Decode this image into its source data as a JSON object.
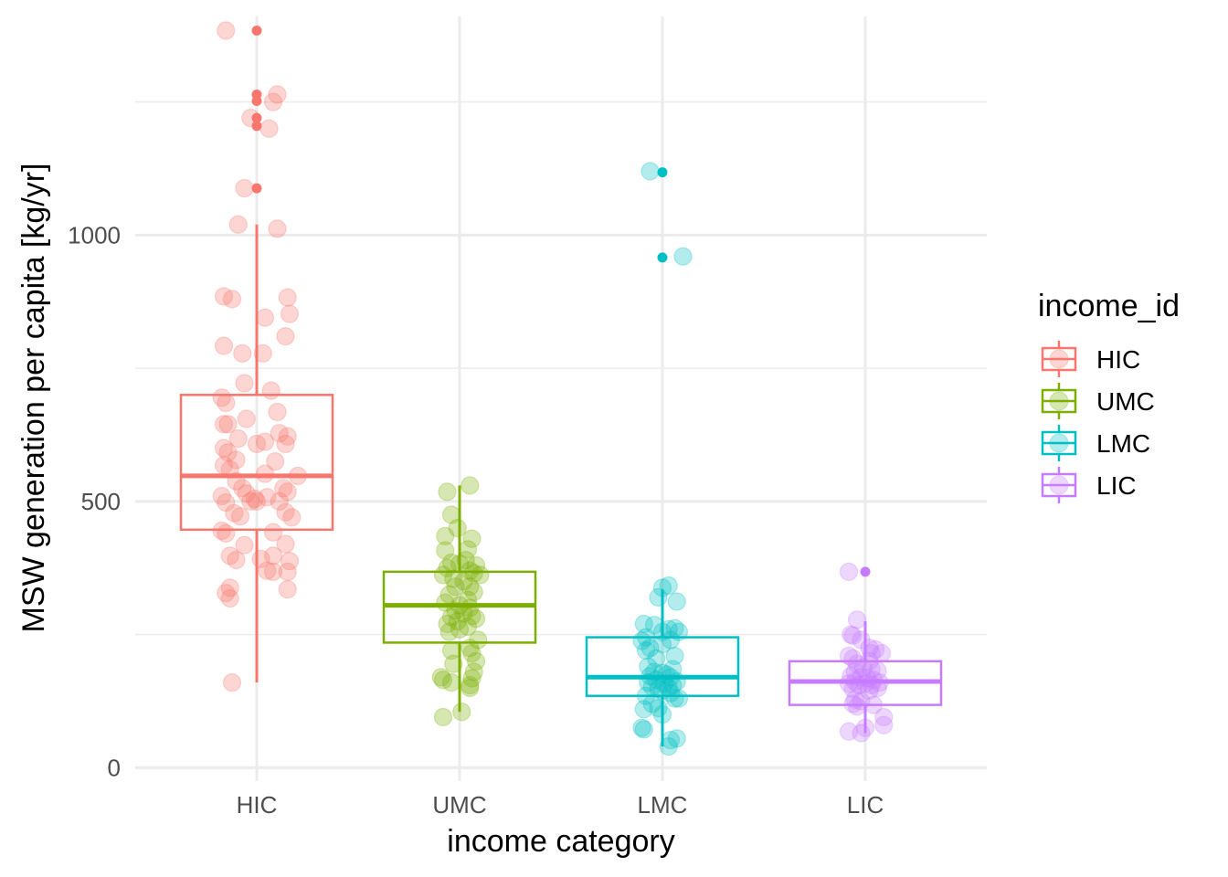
{
  "chart_data": {
    "type": "box",
    "xlabel": "income category",
    "ylabel": "MSW generation per capita [kg/yr]",
    "categories": [
      "HIC",
      "UMC",
      "LMC",
      "LIC"
    ],
    "ylim": [
      -25,
      1390
    ],
    "y_ticks": [
      0,
      500,
      1000
    ],
    "y_minor_ticks": [
      250,
      750,
      1250
    ],
    "grid": true,
    "legend": {
      "title": "income_id",
      "placement": "right",
      "entries": [
        "HIC",
        "UMC",
        "LMC",
        "LIC"
      ]
    },
    "colors": {
      "HIC": "#F8766D",
      "UMC": "#7CAE00",
      "LMC": "#00BFC4",
      "LIC": "#C77CFF"
    },
    "series": [
      {
        "name": "HIC",
        "box": {
          "whisker_low": 160,
          "q1": 447,
          "median": 548,
          "q3": 700,
          "whisker_high": 1020
        },
        "outliers": [
          1384,
          1264,
          1252,
          1220,
          1205,
          1088
        ],
        "points": [
          [
            -0.15,
            1384
          ],
          [
            0.1,
            1264
          ],
          [
            0.08,
            1250
          ],
          [
            -0.03,
            1220
          ],
          [
            0.06,
            1200
          ],
          [
            -0.06,
            1088
          ],
          [
            -0.09,
            1020
          ],
          [
            0.1,
            1012
          ],
          [
            -0.16,
            885
          ],
          [
            -0.12,
            880
          ],
          [
            0.15,
            883
          ],
          [
            0.04,
            845
          ],
          [
            0.16,
            852
          ],
          [
            0.14,
            810
          ],
          [
            -0.16,
            792
          ],
          [
            -0.07,
            778
          ],
          [
            0.03,
            778
          ],
          [
            -0.06,
            722
          ],
          [
            0.07,
            708
          ],
          [
            -0.17,
            695
          ],
          [
            -0.15,
            685
          ],
          [
            0.1,
            668
          ],
          [
            -0.05,
            655
          ],
          [
            -0.16,
            645
          ],
          [
            -0.14,
            645
          ],
          [
            0.11,
            628
          ],
          [
            0.15,
            622
          ],
          [
            -0.09,
            618
          ],
          [
            0.0,
            608
          ],
          [
            0.04,
            612
          ],
          [
            0.14,
            608
          ],
          [
            -0.16,
            600
          ],
          [
            -0.14,
            592
          ],
          [
            -0.1,
            578
          ],
          [
            0.09,
            575
          ],
          [
            -0.16,
            568
          ],
          [
            -0.13,
            560
          ],
          [
            0.04,
            552
          ],
          [
            0.2,
            548
          ],
          [
            -0.1,
            538
          ],
          [
            -0.07,
            525
          ],
          [
            0.13,
            525
          ],
          [
            0.15,
            518
          ],
          [
            -0.05,
            515
          ],
          [
            0.05,
            508
          ],
          [
            -0.01,
            505
          ],
          [
            -0.17,
            510
          ],
          [
            0.0,
            500
          ],
          [
            -0.03,
            500
          ],
          [
            0.11,
            500
          ],
          [
            -0.15,
            498
          ],
          [
            0.14,
            480
          ],
          [
            -0.11,
            478
          ],
          [
            -0.08,
            472
          ],
          [
            0.17,
            470
          ],
          [
            -0.17,
            445
          ],
          [
            -0.15,
            440
          ],
          [
            0.08,
            442
          ],
          [
            -0.06,
            418
          ],
          [
            0.14,
            420
          ],
          [
            -0.13,
            398
          ],
          [
            0.08,
            398
          ],
          [
            -0.1,
            390
          ],
          [
            0.02,
            392
          ],
          [
            0.16,
            388
          ],
          [
            0.05,
            370
          ],
          [
            0.08,
            368
          ],
          [
            0.15,
            368
          ],
          [
            -0.13,
            338
          ],
          [
            0.15,
            335
          ],
          [
            -0.15,
            328
          ],
          [
            -0.13,
            318
          ],
          [
            -0.12,
            160
          ]
        ]
      },
      {
        "name": "UMC",
        "box": {
          "whisker_low": 105,
          "q1": 235,
          "median": 305,
          "q3": 368,
          "whisker_high": 530
        },
        "outliers": [],
        "points": [
          [
            0.05,
            530
          ],
          [
            -0.06,
            518
          ],
          [
            -0.04,
            475
          ],
          [
            -0.01,
            450
          ],
          [
            -0.07,
            435
          ],
          [
            0.06,
            430
          ],
          [
            0.04,
            410
          ],
          [
            -0.07,
            408
          ],
          [
            0.03,
            390
          ],
          [
            -0.04,
            385
          ],
          [
            0.0,
            383
          ],
          [
            0.08,
            380
          ],
          [
            -0.06,
            375
          ],
          [
            0.05,
            370
          ],
          [
            0.07,
            365
          ],
          [
            -0.08,
            362
          ],
          [
            0.1,
            362
          ],
          [
            -0.03,
            355
          ],
          [
            0.02,
            350
          ],
          [
            -0.02,
            340
          ],
          [
            0.05,
            340
          ],
          [
            0.07,
            330
          ],
          [
            -0.05,
            325
          ],
          [
            0.04,
            315
          ],
          [
            -0.07,
            310
          ],
          [
            0.0,
            305
          ],
          [
            0.05,
            300
          ],
          [
            -0.02,
            295
          ],
          [
            0.02,
            290
          ],
          [
            0.06,
            285
          ],
          [
            -0.04,
            283
          ],
          [
            0.08,
            280
          ],
          [
            -0.01,
            275
          ],
          [
            -0.06,
            270
          ],
          [
            0.04,
            265
          ],
          [
            0.0,
            260
          ],
          [
            -0.05,
            255
          ],
          [
            0.09,
            240
          ],
          [
            0.05,
            225
          ],
          [
            -0.04,
            220
          ],
          [
            0.06,
            215
          ],
          [
            0.08,
            200
          ],
          [
            -0.03,
            195
          ],
          [
            0.07,
            180
          ],
          [
            -0.09,
            170
          ],
          [
            0.06,
            168
          ],
          [
            -0.08,
            165
          ],
          [
            -0.04,
            160
          ],
          [
            0.05,
            155
          ],
          [
            0.05,
            150
          ],
          [
            -0.08,
            95
          ],
          [
            0.01,
            105
          ]
        ]
      },
      {
        "name": "LMC",
        "box": {
          "whisker_low": 40,
          "q1": 135,
          "median": 170,
          "q3": 245,
          "whisker_high": 335
        },
        "outliers": [
          1118,
          958
        ],
        "points": [
          [
            -0.06,
            1120
          ],
          [
            0.1,
            960
          ],
          [
            0.03,
            342
          ],
          [
            0.0,
            338
          ],
          [
            -0.02,
            320
          ],
          [
            0.07,
            312
          ],
          [
            -0.09,
            270
          ],
          [
            -0.04,
            268
          ],
          [
            0.06,
            262
          ],
          [
            0.03,
            260
          ],
          [
            0.0,
            255
          ],
          [
            0.08,
            255
          ],
          [
            -0.08,
            245
          ],
          [
            0.04,
            240
          ],
          [
            -0.1,
            238
          ],
          [
            0.0,
            232
          ],
          [
            -0.06,
            225
          ],
          [
            -0.08,
            220
          ],
          [
            0.06,
            210
          ],
          [
            -0.03,
            205
          ],
          [
            -0.07,
            190
          ],
          [
            0.05,
            185
          ],
          [
            -0.04,
            180
          ],
          [
            0.0,
            178
          ],
          [
            0.02,
            175
          ],
          [
            -0.06,
            172
          ],
          [
            0.04,
            170
          ],
          [
            -0.03,
            165
          ],
          [
            0.07,
            162
          ],
          [
            -0.07,
            160
          ],
          [
            0.01,
            158
          ],
          [
            0.05,
            155
          ],
          [
            -0.05,
            152
          ],
          [
            0.03,
            150
          ],
          [
            -0.02,
            148
          ],
          [
            0.0,
            145
          ],
          [
            0.04,
            140
          ],
          [
            -0.08,
            135
          ],
          [
            0.06,
            130
          ],
          [
            0.08,
            130
          ],
          [
            -0.05,
            120
          ],
          [
            -0.02,
            112
          ],
          [
            -0.09,
            110
          ],
          [
            0.0,
            100
          ],
          [
            -0.1,
            75
          ],
          [
            -0.09,
            72
          ],
          [
            0.07,
            55
          ],
          [
            0.04,
            52
          ],
          [
            0.03,
            40
          ]
        ]
      },
      {
        "name": "LIC",
        "box": {
          "whisker_low": 65,
          "q1": 118,
          "median": 162,
          "q3": 200,
          "whisker_high": 275
        },
        "outliers": [
          368
        ],
        "points": [
          [
            -0.08,
            368
          ],
          [
            -0.04,
            278
          ],
          [
            -0.07,
            250
          ],
          [
            -0.06,
            248
          ],
          [
            -0.02,
            240
          ],
          [
            0.02,
            225
          ],
          [
            0.05,
            222
          ],
          [
            0.08,
            215
          ],
          [
            0.03,
            215
          ],
          [
            -0.08,
            210
          ],
          [
            -0.06,
            205
          ],
          [
            0.02,
            200
          ],
          [
            -0.04,
            195
          ],
          [
            -0.01,
            188
          ],
          [
            0.03,
            185
          ],
          [
            0.06,
            182
          ],
          [
            -0.05,
            180
          ],
          [
            -0.07,
            172
          ],
          [
            -0.02,
            170
          ],
          [
            0.01,
            168
          ],
          [
            0.04,
            165
          ],
          [
            -0.05,
            162
          ],
          [
            0.07,
            160
          ],
          [
            0.0,
            158
          ],
          [
            -0.08,
            158
          ],
          [
            0.03,
            155
          ],
          [
            -0.03,
            155
          ],
          [
            0.06,
            150
          ],
          [
            -0.06,
            148
          ],
          [
            0.02,
            145
          ],
          [
            -0.05,
            128
          ],
          [
            -0.02,
            125
          ],
          [
            -0.06,
            120
          ],
          [
            0.04,
            118
          ],
          [
            -0.04,
            115
          ],
          [
            0.09,
            95
          ],
          [
            0.09,
            80
          ],
          [
            0.0,
            75
          ],
          [
            -0.08,
            68
          ],
          [
            -0.02,
            65
          ]
        ]
      }
    ]
  }
}
